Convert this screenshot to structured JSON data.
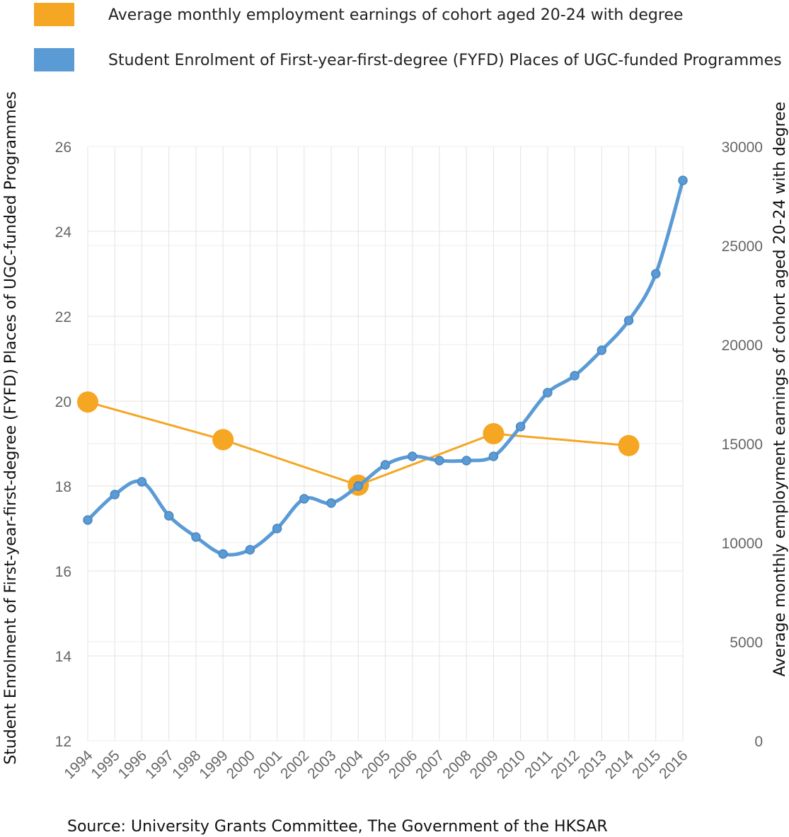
{
  "chart_data": {
    "type": "line",
    "categories": [
      "1994",
      "1995",
      "1996",
      "1997",
      "1998",
      "1999",
      "2000",
      "2001",
      "2002",
      "2003",
      "2004",
      "2005",
      "2006",
      "2007",
      "2008",
      "2009",
      "2010",
      "2011",
      "2012",
      "2013",
      "2014",
      "2015",
      "2016"
    ],
    "series": [
      {
        "name": "Average monthly employment earnings of cohort aged 20-24 with degree",
        "axis": "right",
        "color": "#F5A623",
        "points": [
          {
            "x": "1994",
            "y": 17100
          },
          {
            "x": "1999",
            "y": 15200
          },
          {
            "x": "2004",
            "y": 12900
          },
          {
            "x": "2009",
            "y": 15500
          },
          {
            "x": "2014",
            "y": 14900
          }
        ]
      },
      {
        "name": "Student Enrolment of First-year-first-degree (FYFD) Places of UGC-funded Programmes",
        "axis": "left",
        "color": "#5B9BD5",
        "values": [
          17.2,
          17.8,
          18.1,
          17.3,
          16.8,
          16.4,
          16.5,
          17.0,
          17.7,
          17.6,
          18.0,
          18.5,
          18.7,
          18.6,
          18.6,
          18.7,
          19.4,
          20.2,
          20.6,
          21.2,
          21.9,
          23.0,
          25.2
        ]
      }
    ],
    "y_left": {
      "label": "Student Enrolment of First-year-first-degree (FYFD) Places of UGC-funded Programmes",
      "range": [
        12,
        26
      ],
      "ticks": [
        "12",
        "14",
        "16",
        "18",
        "20",
        "22",
        "24",
        "26"
      ]
    },
    "y_right": {
      "label": "Average monthly employment earnings of cohort aged 20-24 with degree",
      "range": [
        0,
        30000
      ],
      "ticks": [
        "0",
        "5000",
        "10000",
        "15000",
        "20000",
        "25000",
        "30000"
      ]
    },
    "legend": [
      {
        "label": "Average monthly employment earnings of cohort aged 20-24 with degree",
        "color": "#F5A623"
      },
      {
        "label": "Student Enrolment of First-year-first-degree (FYFD) Places of UGC-funded Programmes",
        "color": "#5B9BD5"
      }
    ],
    "grid": true,
    "legend_position": "top-left"
  },
  "source_text": "Source: University Grants Committee, The Government of the HKSAR"
}
